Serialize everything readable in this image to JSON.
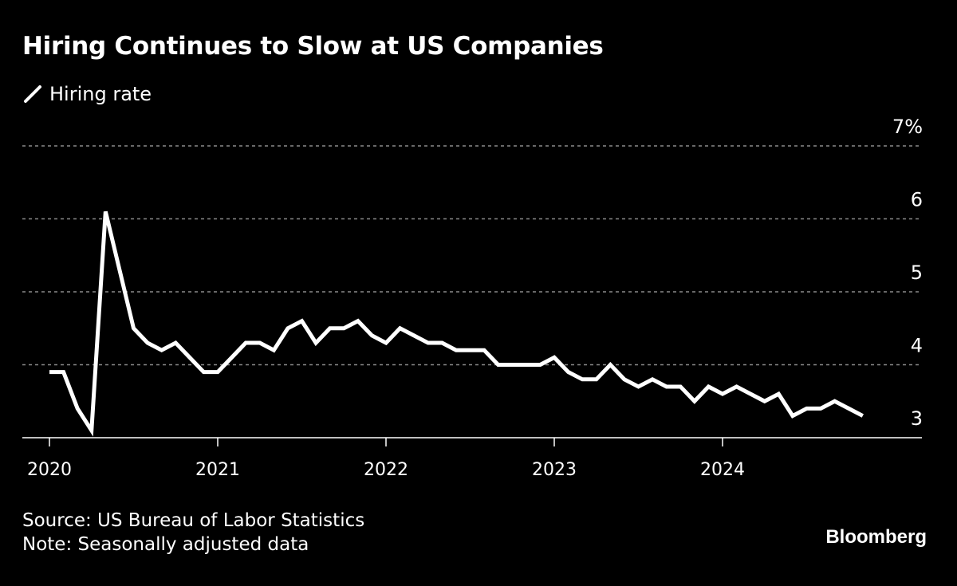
{
  "chart_data": {
    "type": "line",
    "title": "Hiring Continues to Slow at US Companies",
    "legend": [
      "Hiring rate"
    ],
    "legend_position": "top-left",
    "xlabel": "",
    "ylabel": "",
    "y_unit_suffix": "%",
    "ylim": [
      3,
      7
    ],
    "yticks": [
      3,
      4,
      5,
      6,
      7
    ],
    "ytick_labels": [
      "3",
      "4",
      "5",
      "6",
      "7%"
    ],
    "yaxis_side": "right",
    "grid": "horizontal-dotted",
    "xticks": [
      "2020",
      "2021",
      "2022",
      "2023",
      "2024"
    ],
    "x_start": "2020-01",
    "x_end": "2024-11",
    "series": [
      {
        "name": "Hiring rate",
        "color": "#ffffff",
        "frequency": "monthly",
        "start": "2020-01",
        "values": [
          3.9,
          3.9,
          3.4,
          3.1,
          6.1,
          5.3,
          4.5,
          4.3,
          4.2,
          4.3,
          4.1,
          3.9,
          3.9,
          4.1,
          4.3,
          4.3,
          4.2,
          4.5,
          4.6,
          4.3,
          4.5,
          4.5,
          4.6,
          4.4,
          4.3,
          4.5,
          4.4,
          4.3,
          4.3,
          4.2,
          4.2,
          4.2,
          4.0,
          4.0,
          4.0,
          4.0,
          4.1,
          3.9,
          3.8,
          3.8,
          4.0,
          3.8,
          3.7,
          3.8,
          3.7,
          3.7,
          3.5,
          3.7,
          3.6,
          3.7,
          3.6,
          3.5,
          3.6,
          3.3,
          3.4,
          3.4,
          3.5,
          3.4,
          3.3
        ]
      }
    ]
  },
  "footer": {
    "source": "Source: US Bureau of Labor Statistics",
    "note": "Note: Seasonally adjusted data"
  },
  "brand": "Bloomberg",
  "colors": {
    "background": "#000000",
    "line": "#ffffff",
    "grid": "#8a8a8a",
    "text": "#ffffff"
  }
}
